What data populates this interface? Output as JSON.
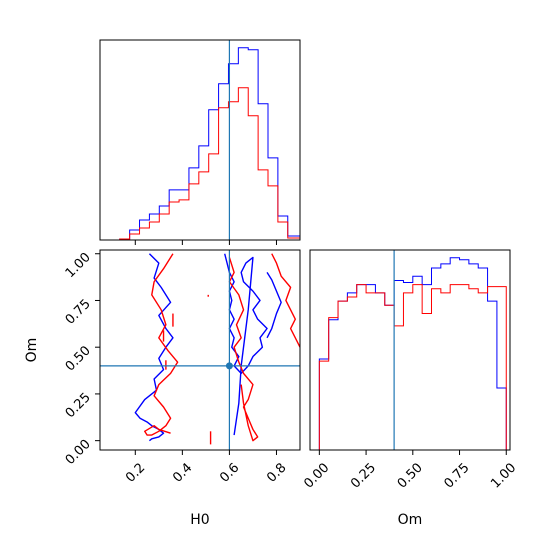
{
  "colors": {
    "series_a": "#0000ff",
    "series_b": "#ff0000",
    "truth": "#1f77b4",
    "frame": "#000000"
  },
  "chart_data": [
    {
      "type": "bar",
      "panel": "H0 marginal histogram",
      "xlim": [
        0.05,
        0.9
      ],
      "bin_edges": [
        0.05,
        0.092,
        0.134,
        0.176,
        0.218,
        0.26,
        0.302,
        0.344,
        0.386,
        0.428,
        0.47,
        0.512,
        0.554,
        0.596,
        0.638,
        0.68,
        0.722,
        0.764,
        0.806,
        0.848,
        0.9
      ],
      "series": [
        {
          "name": "",
          "color": "#0000ff",
          "values": [
            0,
            0,
            0.005,
            0.05,
            0.1,
            0.13,
            0.17,
            0.25,
            0.25,
            0.36,
            0.47,
            0.65,
            0.78,
            0.88,
            0.96,
            0.95,
            0.68,
            0.41,
            0.12,
            0.02
          ]
        },
        {
          "name": "",
          "color": "#ff0000",
          "values": [
            0,
            0,
            0.005,
            0.03,
            0.06,
            0.09,
            0.13,
            0.19,
            0.2,
            0.28,
            0.34,
            0.43,
            0.66,
            0.69,
            0.76,
            0.62,
            0.35,
            0.27,
            0.09,
            0.01
          ]
        }
      ],
      "truth_x": 0.6,
      "xticks": [
        0.2,
        0.4,
        0.6,
        0.8
      ]
    },
    {
      "type": "bar",
      "panel": "Om marginal histogram",
      "xlim": [
        -0.05,
        1.02
      ],
      "bin_edges": [
        -0.05,
        0.0,
        0.05,
        0.1,
        0.15,
        0.2,
        0.25,
        0.3,
        0.35,
        0.4,
        0.45,
        0.5,
        0.55,
        0.6,
        0.65,
        0.7,
        0.75,
        0.8,
        0.85,
        0.9,
        0.95,
        1.0
      ],
      "series": [
        {
          "name": "",
          "color": "#0000ff",
          "values": [
            0,
            0.44,
            0.63,
            0.72,
            0.76,
            0.8,
            0.8,
            0.76,
            0.7,
            0.82,
            0.81,
            0.84,
            0.8,
            0.88,
            0.9,
            0.93,
            0.92,
            0.9,
            0.88,
            0.72,
            0.3
          ]
        },
        {
          "name": "",
          "color": "#ff0000",
          "values": [
            0,
            0.43,
            0.64,
            0.72,
            0.74,
            0.8,
            0.76,
            0.76,
            0.7,
            0.6,
            0.76,
            0.8,
            0.66,
            0.78,
            0.76,
            0.8,
            0.8,
            0.78,
            0.76,
            0.79,
            0.79
          ]
        }
      ],
      "truth_x": 0.4,
      "xticks": [
        0.0,
        0.25,
        0.5,
        0.75,
        1.0
      ],
      "xtick_labels": [
        "0.00",
        "0.25",
        "0.50",
        "0.75",
        "1.00"
      ],
      "xlabel": "Om"
    },
    {
      "type": "line",
      "panel": "H0 vs Om 2D contours",
      "xlim": [
        0.05,
        0.9
      ],
      "ylim": [
        -0.05,
        1.02
      ],
      "xlabel": "H0",
      "ylabel": "Om",
      "xticks": [
        0.2,
        0.4,
        0.6,
        0.8
      ],
      "yticks": [
        0.0,
        0.25,
        0.5,
        0.75,
        1.0
      ],
      "ytick_labels": [
        "0.00",
        "0.25",
        "0.50",
        "0.75",
        "1.00"
      ],
      "truth": {
        "x": 0.6,
        "y": 0.4
      },
      "series": [
        {
          "name": "",
          "color": "#0000ff",
          "x": [
            0.26,
            0.3,
            0.28,
            0.31,
            0.35,
            0.3,
            0.33,
            0.36,
            0.33,
            0.3,
            0.32,
            0.28,
            0.29,
            0.24,
            0.2,
            0.22,
            0.25,
            0.27,
            0.3,
            0.32,
            0.3,
            0.27,
            0.26
          ],
          "y": [
            1.0,
            0.95,
            0.87,
            0.82,
            0.74,
            0.67,
            0.6,
            0.55,
            0.5,
            0.44,
            0.38,
            0.33,
            0.27,
            0.22,
            0.15,
            0.12,
            0.1,
            0.08,
            0.06,
            0.04,
            0.02,
            0.01,
            0.0
          ]
        },
        {
          "name": "",
          "color": "#0000ff",
          "x": [
            0.58,
            0.59,
            0.6,
            0.62,
            0.6,
            0.61,
            0.6,
            0.62,
            0.6,
            0.62,
            0.61,
            0.64,
            0.62,
            0.65,
            0.68,
            0.7,
            0.74,
            0.73,
            0.76,
            0.72,
            0.7,
            0.73,
            0.7,
            0.66,
            0.65,
            0.67,
            0.7,
            0.68,
            0.65,
            0.64,
            0.62
          ],
          "y": [
            1.0,
            0.95,
            0.9,
            0.85,
            0.8,
            0.75,
            0.7,
            0.65,
            0.6,
            0.55,
            0.5,
            0.45,
            0.4,
            0.36,
            0.4,
            0.45,
            0.5,
            0.55,
            0.6,
            0.65,
            0.7,
            0.75,
            0.8,
            0.85,
            0.9,
            0.95,
            0.98,
            0.7,
            0.4,
            0.2,
            0.03
          ]
        },
        {
          "name": "",
          "color": "#0000ff",
          "x": [
            0.76,
            0.78,
            0.8,
            0.82,
            0.8,
            0.78,
            0.76
          ],
          "y": [
            0.9,
            0.86,
            0.8,
            0.74,
            0.68,
            0.6,
            0.55
          ]
        },
        {
          "name": "",
          "color": "#ff0000",
          "x": [
            0.36,
            0.32,
            0.28,
            0.27,
            0.31,
            0.33,
            0.3,
            0.34,
            0.38,
            0.35,
            0.3,
            0.28,
            0.32,
            0.35,
            0.33,
            0.3,
            0.27,
            0.25,
            0.24,
            0.28,
            0.3,
            0.35
          ],
          "y": [
            1.0,
            0.92,
            0.85,
            0.78,
            0.7,
            0.62,
            0.55,
            0.48,
            0.42,
            0.36,
            0.3,
            0.24,
            0.18,
            0.12,
            0.08,
            0.05,
            0.03,
            0.03,
            0.05,
            0.08,
            0.06,
            0.04
          ]
        },
        {
          "name": "",
          "color": "#ff0000",
          "x": [
            0.6,
            0.62,
            0.6,
            0.64,
            0.66,
            0.63,
            0.65,
            0.62,
            0.64,
            0.66,
            0.7,
            0.68,
            0.66,
            0.68,
            0.7,
            0.72,
            0.7,
            0.68,
            0.66,
            0.65
          ],
          "y": [
            0.98,
            0.9,
            0.85,
            0.78,
            0.7,
            0.62,
            0.55,
            0.5,
            0.42,
            0.36,
            0.3,
            0.22,
            0.18,
            0.12,
            0.06,
            0.02,
            0.0,
            0.08,
            0.2,
            0.3
          ]
        },
        {
          "name": "",
          "color": "#ff0000",
          "x": [
            0.78,
            0.8,
            0.82,
            0.86,
            0.84,
            0.86,
            0.88,
            0.86,
            0.88,
            0.9
          ],
          "y": [
            1.0,
            0.95,
            0.88,
            0.82,
            0.75,
            0.7,
            0.65,
            0.6,
            0.55,
            0.5
          ]
        },
        {
          "name": "",
          "color": "#ff0000",
          "x": [
            0.51,
            0.51
          ],
          "y": [
            0.77,
            0.78
          ]
        },
        {
          "name": "",
          "color": "#ff0000",
          "x": [
            0.36,
            0.36
          ],
          "y": [
            0.61,
            0.68
          ]
        },
        {
          "name": "",
          "color": "#ff0000",
          "x": [
            0.32,
            0.32
          ],
          "y": [
            0.53,
            0.59
          ]
        },
        {
          "name": "",
          "color": "#ff0000",
          "x": [
            0.33,
            0.33
          ],
          "y": [
            0.38,
            0.43
          ]
        },
        {
          "name": "",
          "color": "#ff0000",
          "x": [
            0.52,
            0.52
          ],
          "y": [
            -0.02,
            0.05
          ]
        }
      ]
    }
  ]
}
